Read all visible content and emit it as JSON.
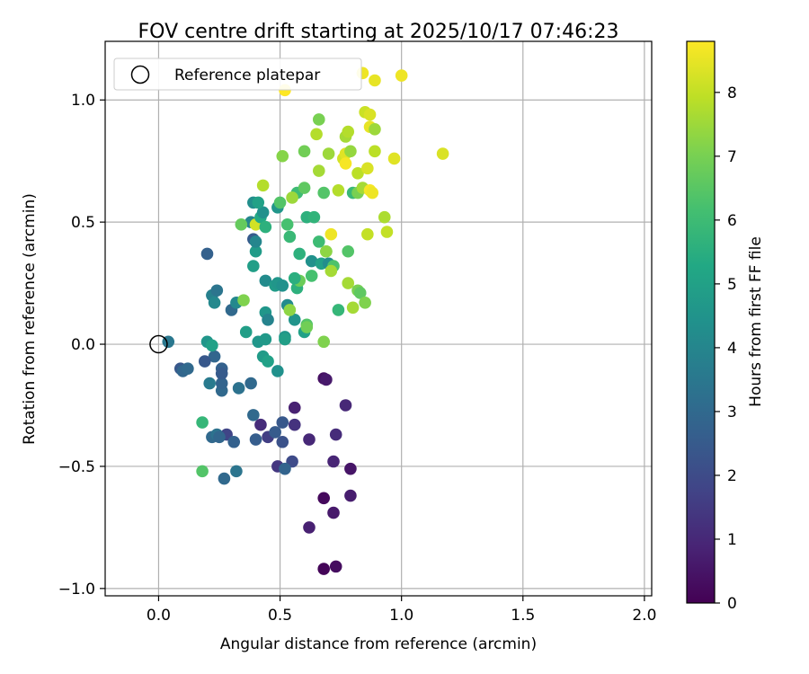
{
  "chart_data": {
    "type": "scatter",
    "title": "FOV centre drift starting at 2025/10/17 07:46:23",
    "xlabel": "Angular distance from reference (arcmin)",
    "ylabel": "Rotation from reference (arcmin)",
    "xlim": [
      -0.22,
      2.03
    ],
    "ylim": [
      -1.03,
      1.24
    ],
    "xticks": [
      0.0,
      0.5,
      1.0,
      1.5,
      2.0
    ],
    "xtick_labels": [
      "0.0",
      "0.5",
      "1.0",
      "1.5",
      "2.0"
    ],
    "yticks": [
      -1.0,
      -0.5,
      0.0,
      0.5,
      1.0
    ],
    "ytick_labels": [
      "−1.0",
      "−0.5",
      "0.0",
      "0.5",
      "1.0"
    ],
    "grid": true,
    "legend": {
      "placement": "top-left",
      "label": "Reference platepar"
    },
    "reference_point": {
      "x": 0.0,
      "y": 0.0
    },
    "colorbar": {
      "label": "Hours from first FF file",
      "range": [
        0,
        8.8
      ],
      "ticks": [
        0,
        1,
        2,
        3,
        4,
        5,
        6,
        7,
        8
      ],
      "tick_labels": [
        "0",
        "1",
        "2",
        "3",
        "4",
        "5",
        "6",
        "7",
        "8"
      ],
      "colormap": "viridis"
    },
    "points": [
      {
        "x": 0.68,
        "y": -0.92,
        "h": 0.1
      },
      {
        "x": 0.73,
        "y": -0.91,
        "h": 0.3
      },
      {
        "x": 0.62,
        "y": -0.75,
        "h": 0.8
      },
      {
        "x": 0.72,
        "y": -0.69,
        "h": 0.6
      },
      {
        "x": 0.68,
        "y": -0.63,
        "h": 0.2
      },
      {
        "x": 0.79,
        "y": -0.62,
        "h": 0.7
      },
      {
        "x": 0.79,
        "y": -0.51,
        "h": 0.5
      },
      {
        "x": 0.72,
        "y": -0.48,
        "h": 0.9
      },
      {
        "x": 0.73,
        "y": -0.37,
        "h": 1.1
      },
      {
        "x": 0.62,
        "y": -0.39,
        "h": 1.0
      },
      {
        "x": 0.56,
        "y": -0.33,
        "h": 1.3
      },
      {
        "x": 0.56,
        "y": -0.26,
        "h": 0.8
      },
      {
        "x": 0.77,
        "y": -0.25,
        "h": 1.0
      },
      {
        "x": 0.68,
        "y": -0.14,
        "h": 0.4
      },
      {
        "x": 0.69,
        "y": -0.145,
        "h": 0.6
      },
      {
        "x": 0.42,
        "y": -0.33,
        "h": 1.1
      },
      {
        "x": 0.45,
        "y": -0.38,
        "h": 1.6
      },
      {
        "x": 0.49,
        "y": -0.5,
        "h": 1.4
      },
      {
        "x": 0.55,
        "y": -0.48,
        "h": 2.0
      },
      {
        "x": 0.51,
        "y": -0.4,
        "h": 2.2
      },
      {
        "x": 0.48,
        "y": -0.36,
        "h": 2.5
      },
      {
        "x": 0.51,
        "y": -0.32,
        "h": 2.4
      },
      {
        "x": 0.52,
        "y": -0.51,
        "h": 2.8
      },
      {
        "x": 0.4,
        "y": -0.39,
        "h": 2.6
      },
      {
        "x": 0.39,
        "y": -0.29,
        "h": 3.0
      },
      {
        "x": 0.28,
        "y": -0.37,
        "h": 1.8
      },
      {
        "x": 0.22,
        "y": -0.38,
        "h": 3.0
      },
      {
        "x": 0.24,
        "y": -0.37,
        "h": 3.3
      },
      {
        "x": 0.25,
        "y": -0.38,
        "h": 2.9
      },
      {
        "x": 0.31,
        "y": -0.4,
        "h": 2.7
      },
      {
        "x": 0.32,
        "y": -0.52,
        "h": 3.4
      },
      {
        "x": 0.27,
        "y": -0.55,
        "h": 3.0
      },
      {
        "x": 0.18,
        "y": -0.52,
        "h": 6.4
      },
      {
        "x": 0.18,
        "y": -0.32,
        "h": 5.8
      },
      {
        "x": 0.26,
        "y": -0.19,
        "h": 3.0
      },
      {
        "x": 0.26,
        "y": -0.16,
        "h": 2.8
      },
      {
        "x": 0.33,
        "y": -0.18,
        "h": 3.3
      },
      {
        "x": 0.38,
        "y": -0.16,
        "h": 3.0
      },
      {
        "x": 0.21,
        "y": -0.16,
        "h": 3.6
      },
      {
        "x": 0.26,
        "y": -0.1,
        "h": 2.7
      },
      {
        "x": 0.26,
        "y": -0.12,
        "h": 2.5
      },
      {
        "x": 0.23,
        "y": -0.05,
        "h": 2.9
      },
      {
        "x": 0.19,
        "y": -0.07,
        "h": 2.4
      },
      {
        "x": 0.09,
        "y": -0.1,
        "h": 2.4
      },
      {
        "x": 0.1,
        "y": -0.11,
        "h": 2.9
      },
      {
        "x": 0.12,
        "y": -0.1,
        "h": 3.0
      },
      {
        "x": 0.04,
        "y": 0.01,
        "h": 3.5
      },
      {
        "x": 0.2,
        "y": 0.01,
        "h": 4.6
      },
      {
        "x": 0.22,
        "y": -0.005,
        "h": 5.0
      },
      {
        "x": 0.36,
        "y": 0.05,
        "h": 4.9
      },
      {
        "x": 0.41,
        "y": 0.01,
        "h": 4.6
      },
      {
        "x": 0.44,
        "y": 0.02,
        "h": 4.7
      },
      {
        "x": 0.43,
        "y": -0.05,
        "h": 4.8
      },
      {
        "x": 0.45,
        "y": -0.07,
        "h": 5.0
      },
      {
        "x": 0.49,
        "y": -0.11,
        "h": 4.4
      },
      {
        "x": 0.52,
        "y": 0.03,
        "h": 4.6
      },
      {
        "x": 0.52,
        "y": 0.02,
        "h": 4.9
      },
      {
        "x": 0.2,
        "y": 0.37,
        "h": 2.7
      },
      {
        "x": 0.22,
        "y": 0.2,
        "h": 3.8
      },
      {
        "x": 0.24,
        "y": 0.22,
        "h": 3.4
      },
      {
        "x": 0.23,
        "y": 0.17,
        "h": 4.1
      },
      {
        "x": 0.3,
        "y": 0.14,
        "h": 3.0
      },
      {
        "x": 0.32,
        "y": 0.17,
        "h": 4.1
      },
      {
        "x": 0.35,
        "y": 0.18,
        "h": 7.1
      },
      {
        "x": 0.44,
        "y": 0.13,
        "h": 4.6
      },
      {
        "x": 0.45,
        "y": 0.1,
        "h": 3.9
      },
      {
        "x": 0.39,
        "y": 0.32,
        "h": 4.9
      },
      {
        "x": 0.4,
        "y": 0.38,
        "h": 4.8
      },
      {
        "x": 0.39,
        "y": 0.43,
        "h": 2.5
      },
      {
        "x": 0.4,
        "y": 0.42,
        "h": 4.0
      },
      {
        "x": 0.44,
        "y": 0.26,
        "h": 4.2
      },
      {
        "x": 0.48,
        "y": 0.24,
        "h": 4.8
      },
      {
        "x": 0.49,
        "y": 0.25,
        "h": 4.6
      },
      {
        "x": 0.51,
        "y": 0.24,
        "h": 4.4
      },
      {
        "x": 0.53,
        "y": 0.16,
        "h": 4.2
      },
      {
        "x": 0.56,
        "y": 0.1,
        "h": 4.5
      },
      {
        "x": 0.54,
        "y": 0.14,
        "h": 7.3
      },
      {
        "x": 0.57,
        "y": 0.23,
        "h": 5.6
      },
      {
        "x": 0.58,
        "y": 0.26,
        "h": 6.8
      },
      {
        "x": 0.56,
        "y": 0.27,
        "h": 5.5
      },
      {
        "x": 0.6,
        "y": 0.05,
        "h": 5.0
      },
      {
        "x": 0.61,
        "y": 0.08,
        "h": 6.4
      },
      {
        "x": 0.61,
        "y": 0.07,
        "h": 6.9
      },
      {
        "x": 0.63,
        "y": 0.28,
        "h": 6.2
      },
      {
        "x": 0.63,
        "y": 0.34,
        "h": 4.4
      },
      {
        "x": 0.67,
        "y": 0.33,
        "h": 5.0
      },
      {
        "x": 0.68,
        "y": 0.01,
        "h": 7.1
      },
      {
        "x": 0.69,
        "y": 0.38,
        "h": 6.3
      },
      {
        "x": 0.7,
        "y": 0.33,
        "h": 4.3
      },
      {
        "x": 0.72,
        "y": 0.32,
        "h": 6.3
      },
      {
        "x": 0.71,
        "y": 0.3,
        "h": 7.6
      },
      {
        "x": 0.74,
        "y": 0.14,
        "h": 5.8
      },
      {
        "x": 0.78,
        "y": 0.25,
        "h": 7.6
      },
      {
        "x": 0.78,
        "y": 0.38,
        "h": 6.4
      },
      {
        "x": 0.8,
        "y": 0.15,
        "h": 7.6
      },
      {
        "x": 0.82,
        "y": 0.22,
        "h": 7.0
      },
      {
        "x": 0.83,
        "y": 0.21,
        "h": 6.6
      },
      {
        "x": 0.85,
        "y": 0.17,
        "h": 7.1
      },
      {
        "x": 0.38,
        "y": 0.5,
        "h": 4.0
      },
      {
        "x": 0.34,
        "y": 0.49,
        "h": 6.7
      },
      {
        "x": 0.4,
        "y": 0.49,
        "h": 8.2
      },
      {
        "x": 0.42,
        "y": 0.52,
        "h": 5.3
      },
      {
        "x": 0.43,
        "y": 0.54,
        "h": 4.4
      },
      {
        "x": 0.44,
        "y": 0.48,
        "h": 5.6
      },
      {
        "x": 0.39,
        "y": 0.58,
        "h": 4.3
      },
      {
        "x": 0.41,
        "y": 0.58,
        "h": 5.0
      },
      {
        "x": 0.49,
        "y": 0.56,
        "h": 4.6
      },
      {
        "x": 0.5,
        "y": 0.58,
        "h": 6.4
      },
      {
        "x": 0.53,
        "y": 0.49,
        "h": 6.2
      },
      {
        "x": 0.54,
        "y": 0.44,
        "h": 5.9
      },
      {
        "x": 0.58,
        "y": 0.37,
        "h": 5.6
      },
      {
        "x": 0.57,
        "y": 0.62,
        "h": 6.0
      },
      {
        "x": 0.6,
        "y": 0.64,
        "h": 6.6
      },
      {
        "x": 0.61,
        "y": 0.52,
        "h": 5.6
      },
      {
        "x": 0.64,
        "y": 0.52,
        "h": 5.7
      },
      {
        "x": 0.66,
        "y": 0.42,
        "h": 6.0
      },
      {
        "x": 0.68,
        "y": 0.62,
        "h": 6.4
      },
      {
        "x": 0.69,
        "y": 0.38,
        "h": 7.3
      },
      {
        "x": 0.71,
        "y": 0.45,
        "h": 8.6
      },
      {
        "x": 0.74,
        "y": 0.63,
        "h": 7.8
      },
      {
        "x": 0.8,
        "y": 0.62,
        "h": 5.9
      },
      {
        "x": 0.82,
        "y": 0.62,
        "h": 7.0
      },
      {
        "x": 0.84,
        "y": 0.64,
        "h": 7.6
      },
      {
        "x": 0.86,
        "y": 0.45,
        "h": 8.0
      },
      {
        "x": 0.87,
        "y": 0.63,
        "h": 8.7
      },
      {
        "x": 0.88,
        "y": 0.62,
        "h": 8.6
      },
      {
        "x": 0.43,
        "y": 0.65,
        "h": 7.8
      },
      {
        "x": 0.55,
        "y": 0.6,
        "h": 7.5
      },
      {
        "x": 0.51,
        "y": 0.77,
        "h": 7.2
      },
      {
        "x": 0.6,
        "y": 0.79,
        "h": 6.9
      },
      {
        "x": 0.66,
        "y": 0.71,
        "h": 7.6
      },
      {
        "x": 0.7,
        "y": 0.78,
        "h": 7.5
      },
      {
        "x": 0.76,
        "y": 0.76,
        "h": 8.2
      },
      {
        "x": 0.77,
        "y": 0.78,
        "h": 8.4
      },
      {
        "x": 0.77,
        "y": 0.74,
        "h": 8.7
      },
      {
        "x": 0.79,
        "y": 0.79,
        "h": 7.4
      },
      {
        "x": 0.82,
        "y": 0.7,
        "h": 7.9
      },
      {
        "x": 0.86,
        "y": 0.72,
        "h": 8.3
      },
      {
        "x": 0.89,
        "y": 0.79,
        "h": 7.9
      },
      {
        "x": 0.93,
        "y": 0.52,
        "h": 7.7
      },
      {
        "x": 0.94,
        "y": 0.46,
        "h": 8.0
      },
      {
        "x": 0.97,
        "y": 0.76,
        "h": 8.4
      },
      {
        "x": 1.17,
        "y": 0.78,
        "h": 8.3
      },
      {
        "x": 0.65,
        "y": 0.86,
        "h": 7.8
      },
      {
        "x": 0.66,
        "y": 0.92,
        "h": 7.0
      },
      {
        "x": 0.77,
        "y": 0.85,
        "h": 7.6
      },
      {
        "x": 0.78,
        "y": 0.87,
        "h": 7.8
      },
      {
        "x": 0.85,
        "y": 0.95,
        "h": 8.1
      },
      {
        "x": 0.87,
        "y": 0.94,
        "h": 8.3
      },
      {
        "x": 0.87,
        "y": 0.89,
        "h": 8.5
      },
      {
        "x": 0.89,
        "y": 0.88,
        "h": 7.5
      },
      {
        "x": 0.52,
        "y": 1.04,
        "h": 8.8
      },
      {
        "x": 0.84,
        "y": 1.11,
        "h": 8.6
      },
      {
        "x": 0.89,
        "y": 1.08,
        "h": 8.5
      },
      {
        "x": 1.0,
        "y": 1.1,
        "h": 8.6
      }
    ]
  }
}
